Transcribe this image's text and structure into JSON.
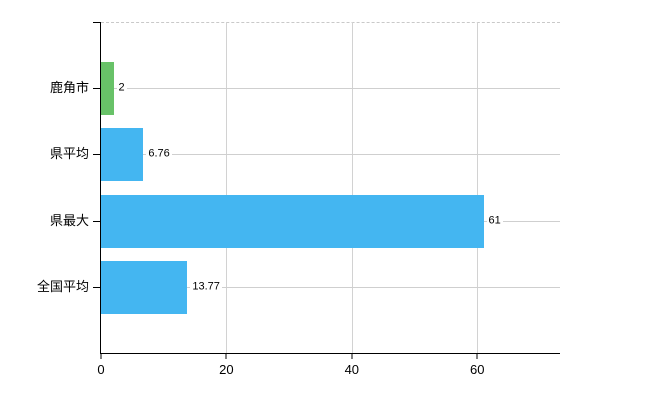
{
  "chart_data": {
    "type": "bar",
    "orientation": "horizontal",
    "categories": [
      "鹿角市",
      "県平均",
      "県最大",
      "全国平均"
    ],
    "values": [
      2,
      6.76,
      61,
      13.77
    ],
    "value_labels": [
      "2",
      "6.76",
      "61",
      "13.77"
    ],
    "bar_colors": [
      "#68c268",
      "#44b6f1",
      "#44b6f1",
      "#44b6f1"
    ],
    "xlim": [
      0,
      73.2
    ],
    "x_tick_values": [
      0,
      20,
      40,
      60
    ],
    "x_tick_labels": [
      "0",
      "20",
      "40",
      "60"
    ],
    "grid": true,
    "legend_position": "none",
    "title": ""
  },
  "colors": {
    "background": "#ffffff",
    "axis": "#000000",
    "gridline": "#cfcfcf",
    "plot_top_border": "#c9c9c9",
    "bar_green": "#68c268",
    "bar_blue": "#44b6f1",
    "text": "#000000"
  }
}
